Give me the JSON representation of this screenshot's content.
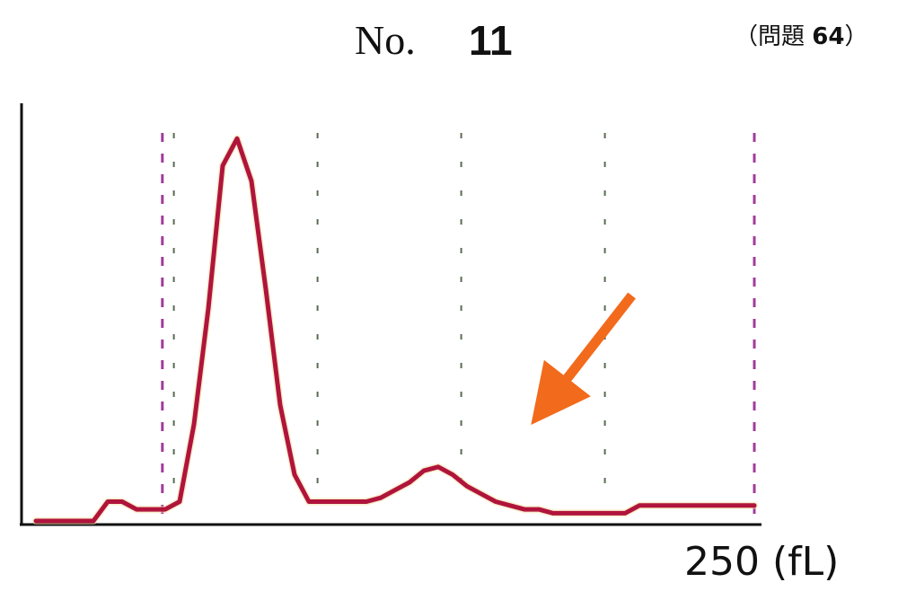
{
  "header": {
    "no_label": "No.",
    "number": "11",
    "question_ref_open": "（",
    "question_ref_text": "問題",
    "question_ref_number": "64",
    "question_ref_close": "）"
  },
  "chart_data": {
    "type": "line",
    "title": "",
    "xlabel": "",
    "ylabel": "",
    "x_end_label": "250 (fL)",
    "xlim": [
      0,
      250
    ],
    "ylim": [
      0,
      100
    ],
    "grid": false,
    "legend": "none",
    "markers": [
      {
        "x": 44,
        "style": "dashed",
        "color": "#a03c9a"
      },
      {
        "x": 250,
        "style": "dashed",
        "color": "#a03c9a"
      }
    ],
    "guides": [
      {
        "x": 48,
        "style": "dotted",
        "color": "#5a6b55"
      },
      {
        "x": 98,
        "style": "dotted",
        "color": "#5a6b55"
      },
      {
        "x": 148,
        "style": "dotted",
        "color": "#5a6b55"
      },
      {
        "x": 198,
        "style": "dotted",
        "color": "#5a6b55"
      }
    ],
    "series": [
      {
        "color": "#b0143c",
        "x": [
          0,
          20,
          25,
          30,
          35,
          40,
          45,
          50,
          55,
          60,
          65,
          70,
          75,
          80,
          85,
          90,
          95,
          100,
          105,
          110,
          115,
          120,
          125,
          130,
          135,
          140,
          145,
          150,
          155,
          160,
          165,
          170,
          175,
          180,
          185,
          190,
          195,
          200,
          205,
          210,
          215,
          220,
          225,
          230,
          235,
          240,
          245,
          250
        ],
        "y": [
          0,
          0,
          5,
          5,
          3,
          3,
          3,
          5,
          25,
          55,
          92,
          99,
          88,
          60,
          30,
          12,
          5,
          5,
          5,
          5,
          5,
          6,
          8,
          10,
          13,
          14,
          12,
          9,
          7,
          5,
          4,
          3,
          3,
          2,
          2,
          2,
          2,
          2,
          2,
          4,
          4,
          4,
          4,
          4,
          4,
          4,
          4,
          4
        ]
      }
    ],
    "annotations": [
      {
        "type": "arrow",
        "points_to_x": 173,
        "points_to_y": 20,
        "color": "#f26a1b"
      }
    ]
  }
}
